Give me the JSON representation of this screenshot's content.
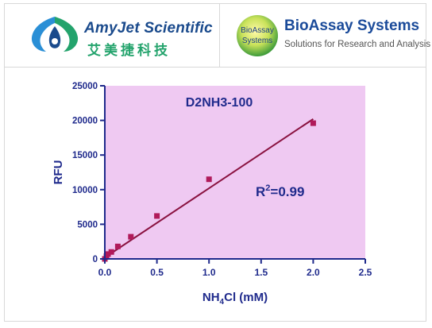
{
  "header": {
    "left_brand": {
      "name": "AmyJet Scientific",
      "name_cn": "艾美捷科技",
      "logo_icon": "amyjet-droplet-icon"
    },
    "right_brand": {
      "name": "BioAssay Systems",
      "tagline": "Solutions for Research and Analysis",
      "logo_text_1": "BioAssay",
      "logo_text_2": "Systems",
      "logo_icon": "bioassay-globe-icon"
    }
  },
  "colors": {
    "plot_background": "#efc9f2",
    "marker": "#b01a5a",
    "fit_line": "#8a1240",
    "axis_text": "#1f2a8c"
  },
  "chart_data": {
    "type": "scatter",
    "title": "D2NH3-100",
    "xlabel": "NH4Cl (mM)",
    "ylabel": "RFU",
    "xlim": [
      0,
      2.5
    ],
    "ylim": [
      0,
      25000
    ],
    "xticks": [
      "0.0",
      "0.5",
      "1.0",
      "1.5",
      "2.0",
      "2.5"
    ],
    "yticks": [
      "0",
      "5000",
      "10000",
      "15000",
      "20000",
      "25000"
    ],
    "annotation": "R2=0.99",
    "series": [
      {
        "points": [
          {
            "x": 0,
            "y": 0
          },
          {
            "x": 0.016,
            "y": 400
          },
          {
            "x": 0.031,
            "y": 700
          },
          {
            "x": 0.0625,
            "y": 1000
          },
          {
            "x": 0.125,
            "y": 1800
          },
          {
            "x": 0.25,
            "y": 3200
          },
          {
            "x": 0.5,
            "y": 6200
          },
          {
            "x": 1.0,
            "y": 11500
          },
          {
            "x": 2.0,
            "y": 19600
          }
        ]
      }
    ],
    "fit_line": {
      "x": [
        0,
        2.0
      ],
      "y": [
        200,
        20200
      ]
    },
    "grid": false
  }
}
